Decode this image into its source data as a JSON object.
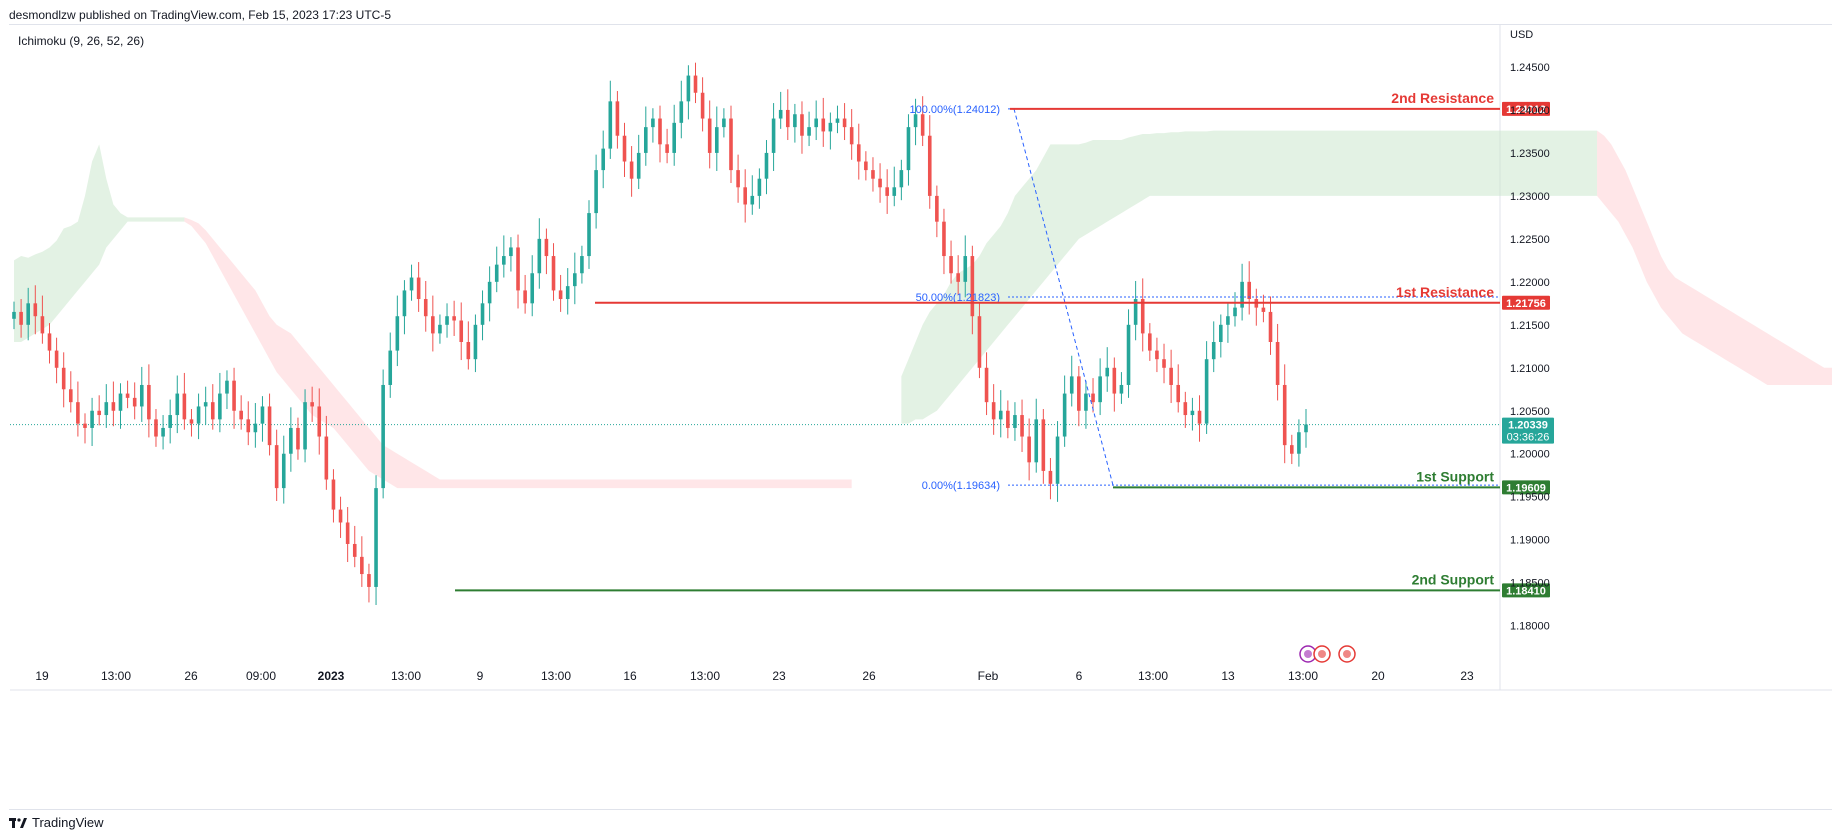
{
  "header": {
    "published_text": "desmondlzw published on TradingView.com, Feb 15, 2023 17:23 UTC-5",
    "indicator": "Ichimoku (9, 26, 52, 26)",
    "currency": "USD"
  },
  "footer": {
    "brand": "TradingView",
    "logo": "tv-logo-icon"
  },
  "colors": {
    "bull": "#26a69a",
    "bear": "#ef5350",
    "resistance": "#e53935",
    "support": "#2e7d32",
    "fib": "#2962ff",
    "cloud_bull": "#c8e6c9",
    "cloud_bear": "#ffcdd2"
  },
  "chart_data": {
    "type": "candlestick",
    "symbol_note": "EUR/USD style price chart",
    "ylim": [
      1.176,
      1.25
    ],
    "y_ticks": [
      "1.24500",
      "1.24000",
      "1.23500",
      "1.23000",
      "1.22500",
      "1.22000",
      "1.21500",
      "1.21000",
      "1.20500",
      "1.20000",
      "1.19500",
      "1.19000",
      "1.18500",
      "1.18000"
    ],
    "y_tick_values": [
      1.245,
      1.24,
      1.235,
      1.23,
      1.225,
      1.22,
      1.215,
      1.21,
      1.205,
      1.2,
      1.195,
      1.19,
      1.185,
      1.18
    ],
    "x_ticks": [
      "19",
      "13:00",
      "26",
      "09:00",
      "2023",
      "13:00",
      "9",
      "13:00",
      "16",
      "13:00",
      "23",
      "26",
      "Feb",
      "6",
      "13:00",
      "13",
      "13:00",
      "20",
      "23"
    ],
    "x_tick_bold": [
      false,
      false,
      false,
      false,
      true,
      false,
      false,
      false,
      false,
      false,
      false,
      false,
      false,
      false,
      false,
      false,
      false,
      false,
      false
    ],
    "current_price": {
      "value": 1.20339,
      "label": "1.20339",
      "countdown": "03:36:26"
    },
    "levels": [
      {
        "name": "2nd Resistance",
        "value": 1.24012,
        "label": "1.24012",
        "kind": "resistance"
      },
      {
        "name": "1st Resistance",
        "value": 1.21756,
        "label": "1.21756",
        "kind": "resistance"
      },
      {
        "name": "1st Support",
        "value": 1.19609,
        "label": "1.19609",
        "kind": "support"
      },
      {
        "name": "2nd Support",
        "value": 1.1841,
        "label": "1.18410",
        "kind": "support"
      }
    ],
    "fib_levels": [
      {
        "label": "100.00%(1.24012)",
        "value": 1.24012
      },
      {
        "label": "50.00%(1.21823)",
        "value": 1.21823
      },
      {
        "label": "0.00%(1.19634)",
        "value": 1.19634
      }
    ],
    "price_path": [
      1.2165,
      1.215,
      1.2175,
      1.216,
      1.214,
      1.212,
      1.21,
      1.2075,
      1.206,
      1.2035,
      1.203,
      1.205,
      1.2045,
      1.206,
      1.205,
      1.207,
      1.2065,
      1.2055,
      1.208,
      1.204,
      1.202,
      1.203,
      1.2045,
      1.207,
      1.204,
      1.2035,
      1.2055,
      1.206,
      1.204,
      1.207,
      1.2085,
      1.205,
      1.204,
      1.2025,
      1.2035,
      1.2055,
      1.201,
      1.196,
      1.2,
      1.203,
      1.2005,
      1.206,
      1.2055,
      1.202,
      1.197,
      1.1935,
      1.192,
      1.1895,
      1.188,
      1.186,
      1.1845,
      1.196,
      1.208,
      1.212,
      1.216,
      1.219,
      1.2205,
      1.218,
      1.216,
      1.214,
      1.215,
      1.216,
      1.2155,
      1.213,
      1.211,
      1.215,
      1.2175,
      1.22,
      1.222,
      1.223,
      1.224,
      1.219,
      1.2175,
      1.221,
      1.225,
      1.223,
      1.219,
      1.218,
      1.2195,
      1.221,
      1.223,
      1.228,
      1.233,
      1.2355,
      1.241,
      1.237,
      1.234,
      1.232,
      1.235,
      1.238,
      1.239,
      1.236,
      1.235,
      1.2385,
      1.241,
      1.244,
      1.242,
      1.239,
      1.235,
      1.238,
      1.239,
      1.233,
      1.231,
      1.229,
      1.23,
      1.232,
      1.235,
      1.239,
      1.24,
      1.238,
      1.2395,
      1.237,
      1.238,
      1.239,
      1.2375,
      1.2385,
      1.239,
      1.238,
      1.236,
      1.234,
      1.233,
      1.232,
      1.231,
      1.23,
      1.231,
      1.233,
      1.238,
      1.2395,
      1.237,
      1.23,
      1.227,
      1.223,
      1.221,
      1.22,
      1.223,
      1.216,
      1.21,
      1.206,
      1.204,
      1.205,
      1.203,
      1.2045,
      1.202,
      1.199,
      1.204,
      1.198,
      1.1965,
      1.202,
      1.207,
      1.209,
      1.205,
      1.207,
      1.206,
      1.209,
      1.21,
      1.207,
      1.208,
      1.215,
      1.218,
      1.214,
      1.212,
      1.211,
      1.21,
      1.208,
      1.206,
      1.2045,
      1.205,
      1.2035,
      1.211,
      1.213,
      1.215,
      1.216,
      1.217,
      1.22,
      1.218,
      1.217,
      1.2165,
      1.213,
      1.208,
      1.201,
      1.2,
      1.2025,
      1.2034
    ],
    "cloud": {
      "bull_zones": [
        {
          "from": 0,
          "to": 24,
          "top": [
            1.2225,
            1.223,
            1.2228,
            1.2232,
            1.2235,
            1.224,
            1.2248,
            1.2262,
            1.2265,
            1.227,
            1.23,
            1.234,
            1.236,
            1.232,
            1.229,
            1.228,
            1.2275,
            1.2275,
            1.2275,
            1.2275,
            1.2275,
            1.2275,
            1.2275,
            1.2275,
            1.2275
          ],
          "bottom": [
            1.213,
            1.213,
            1.2135,
            1.214,
            1.2145,
            1.215,
            1.216,
            1.217,
            1.218,
            1.219,
            1.22,
            1.221,
            1.222,
            1.224,
            1.225,
            1.226,
            1.227,
            1.227,
            1.227,
            1.227,
            1.227,
            1.227,
            1.227,
            1.227,
            1.227
          ]
        },
        {
          "from": 125,
          "to": 223,
          "top": [
            1.209,
            1.211,
            1.213,
            1.215,
            1.2165,
            1.2175,
            1.2185,
            1.22,
            1.221,
            1.2215,
            1.222,
            1.223,
            1.2245,
            1.2255,
            1.2265,
            1.228,
            1.23,
            1.231,
            1.232,
            1.233,
            1.2345,
            1.236,
            1.236,
            1.236,
            1.236,
            1.236,
            1.2362,
            1.2365,
            1.2365,
            1.2365,
            1.2365,
            1.2365,
            1.2368,
            1.237,
            1.2372,
            1.2372,
            1.2373,
            1.2373,
            1.2374,
            1.2374,
            1.2375,
            1.2375,
            1.2375,
            1.2375,
            1.2376,
            1.2376,
            1.2376,
            1.2376,
            1.2376,
            1.2376,
            1.2376,
            1.2376,
            1.2376,
            1.2376,
            1.2376,
            1.2376,
            1.2376,
            1.2376,
            1.2376,
            1.2376,
            1.2376,
            1.2376,
            1.2376,
            1.2376,
            1.2376,
            1.2376,
            1.2376,
            1.2376,
            1.2376,
            1.2376,
            1.2376,
            1.2376,
            1.2376,
            1.2376,
            1.2376,
            1.2376,
            1.2376,
            1.2376,
            1.2376,
            1.2376,
            1.2376,
            1.2376,
            1.2376,
            1.2376,
            1.2376,
            1.2376,
            1.2376,
            1.2376,
            1.2376,
            1.2376,
            1.2376,
            1.2376,
            1.2376,
            1.2376,
            1.2376,
            1.2376,
            1.2376,
            1.2376,
            1.2376
          ],
          "bottom": [
            1.2035,
            1.2035,
            1.204,
            1.204,
            1.2045,
            1.205,
            1.206,
            1.207,
            1.208,
            1.209,
            1.21,
            1.211,
            1.212,
            1.213,
            1.214,
            1.215,
            1.216,
            1.217,
            1.218,
            1.219,
            1.22,
            1.221,
            1.222,
            1.223,
            1.224,
            1.225,
            1.2255,
            1.226,
            1.2265,
            1.227,
            1.2275,
            1.228,
            1.2285,
            1.229,
            1.2295,
            1.23,
            1.23,
            1.23,
            1.23,
            1.23,
            1.23,
            1.23,
            1.23,
            1.23,
            1.23,
            1.23,
            1.23,
            1.23,
            1.23,
            1.23,
            1.23,
            1.23,
            1.23,
            1.23,
            1.23,
            1.23,
            1.23,
            1.23,
            1.23,
            1.23,
            1.23,
            1.23,
            1.23,
            1.23,
            1.23,
            1.23,
            1.23,
            1.23,
            1.23,
            1.23,
            1.23,
            1.23,
            1.23,
            1.23,
            1.23,
            1.23,
            1.23,
            1.23,
            1.23,
            1.23,
            1.23,
            1.23,
            1.23,
            1.23,
            1.23,
            1.23,
            1.23,
            1.23,
            1.23,
            1.23,
            1.23,
            1.23,
            1.23,
            1.23,
            1.23,
            1.23,
            1.23,
            1.23,
            1.23
          ]
        }
      ],
      "bear_zones": [
        {
          "from": 24,
          "to": 118,
          "top": [
            1.2275,
            1.2272,
            1.2268,
            1.226,
            1.225,
            1.224,
            1.223,
            1.222,
            1.221,
            1.22,
            1.219,
            1.2175,
            1.216,
            1.215,
            1.2145,
            1.214,
            1.213,
            1.212,
            1.211,
            1.21,
            1.209,
            1.208,
            1.207,
            1.206,
            1.205,
            1.204,
            1.203,
            1.202,
            1.201,
            1.2005,
            1.2,
            1.1995,
            1.199,
            1.1985,
            1.198,
            1.1975,
            1.197,
            1.197,
            1.197,
            1.197,
            1.197,
            1.197,
            1.197,
            1.197,
            1.197,
            1.197,
            1.197,
            1.197,
            1.197,
            1.197,
            1.197,
            1.197,
            1.197,
            1.197,
            1.197,
            1.197,
            1.197,
            1.197,
            1.197,
            1.197,
            1.197,
            1.197,
            1.197,
            1.197,
            1.197,
            1.197,
            1.197,
            1.197,
            1.197,
            1.197,
            1.197,
            1.197,
            1.197,
            1.197,
            1.197,
            1.197,
            1.197,
            1.197,
            1.197,
            1.197,
            1.197,
            1.197,
            1.197,
            1.197,
            1.197,
            1.197,
            1.197,
            1.197,
            1.197,
            1.197,
            1.197,
            1.197,
            1.197,
            1.197,
            1.197
          ],
          "bottom": [
            1.227,
            1.2265,
            1.2255,
            1.2245,
            1.223,
            1.2215,
            1.22,
            1.2185,
            1.217,
            1.2155,
            1.214,
            1.2125,
            1.211,
            1.2095,
            1.2085,
            1.2075,
            1.2065,
            1.2055,
            1.2045,
            1.204,
            1.2035,
            1.203,
            1.202,
            1.201,
            1.2,
            1.199,
            1.198,
            1.1975,
            1.197,
            1.1965,
            1.196,
            1.196,
            1.196,
            1.196,
            1.196,
            1.196,
            1.196,
            1.196,
            1.196,
            1.196,
            1.196,
            1.196,
            1.196,
            1.196,
            1.196,
            1.196,
            1.196,
            1.196,
            1.196,
            1.196,
            1.196,
            1.196,
            1.196,
            1.196,
            1.196,
            1.196,
            1.196,
            1.196,
            1.196,
            1.196,
            1.196,
            1.196,
            1.196,
            1.196,
            1.196,
            1.196,
            1.196,
            1.196,
            1.196,
            1.196,
            1.196,
            1.196,
            1.196,
            1.196,
            1.196,
            1.196,
            1.196,
            1.196,
            1.196,
            1.196,
            1.196,
            1.196,
            1.196,
            1.196,
            1.196,
            1.196,
            1.196,
            1.196,
            1.196,
            1.196,
            1.196,
            1.196,
            1.196,
            1.196,
            1.196
          ]
        },
        {
          "from": 223,
          "to": 300,
          "top": [
            1.2376,
            1.237,
            1.236,
            1.2345,
            1.233,
            1.231,
            1.229,
            1.227,
            1.225,
            1.223,
            1.2215,
            1.2205,
            1.22,
            1.2195,
            1.219,
            1.2185,
            1.218,
            1.2175,
            1.217,
            1.2165,
            1.216,
            1.2155,
            1.215,
            1.2145,
            1.214,
            1.2135,
            1.213,
            1.2125,
            1.212,
            1.2115,
            1.211,
            1.2105,
            1.21,
            1.21,
            1.21,
            1.21,
            1.21,
            1.21,
            1.21,
            1.21,
            1.21,
            1.21,
            1.21,
            1.21,
            1.21,
            1.21,
            1.21,
            1.21,
            1.21,
            1.21,
            1.21,
            1.21,
            1.21,
            1.21,
            1.21,
            1.21,
            1.21,
            1.21,
            1.21,
            1.21,
            1.21,
            1.21,
            1.21,
            1.21,
            1.21,
            1.21,
            1.21,
            1.21,
            1.21,
            1.21,
            1.21,
            1.21,
            1.21,
            1.21,
            1.21,
            1.21,
            1.21,
            1.21
          ],
          "bottom": [
            1.23,
            1.229,
            1.228,
            1.227,
            1.2255,
            1.224,
            1.222,
            1.22,
            1.2185,
            1.217,
            1.216,
            1.215,
            1.214,
            1.2135,
            1.213,
            1.2125,
            1.212,
            1.2115,
            1.211,
            1.2105,
            1.21,
            1.2095,
            1.209,
            1.2085,
            1.208,
            1.208,
            1.208,
            1.208,
            1.208,
            1.208,
            1.208,
            1.208,
            1.208,
            1.208,
            1.208,
            1.208,
            1.208,
            1.208,
            1.208,
            1.208,
            1.208,
            1.208,
            1.208,
            1.208,
            1.208,
            1.208,
            1.208,
            1.208,
            1.208,
            1.208,
            1.208,
            1.208,
            1.208,
            1.208,
            1.208,
            1.208,
            1.208,
            1.208,
            1.208,
            1.208,
            1.208,
            1.208,
            1.208,
            1.208,
            1.208,
            1.208,
            1.208,
            1.208,
            1.208,
            1.208,
            1.208,
            1.208,
            1.208,
            1.208,
            1.208,
            1.208,
            1.208,
            1.208
          ]
        }
      ]
    }
  }
}
